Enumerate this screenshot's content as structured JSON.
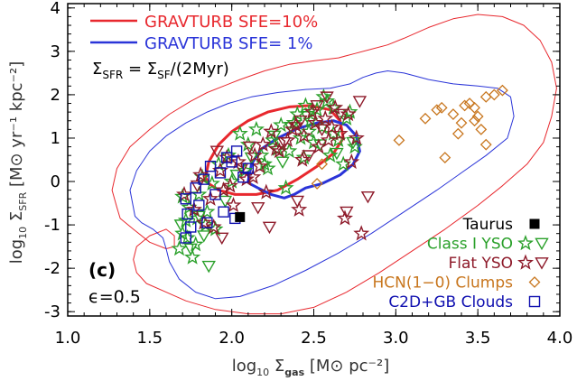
{
  "chart_data": {
    "type": "scatter",
    "panel_label": "(c)",
    "epsilon_label": "ϵ=0.5",
    "formula": {
      "left": "Σ",
      "left_sub": "SFR",
      "mid": " = Σ",
      "mid_sub": "SF",
      "right": "/(2Myr)"
    },
    "xlabel": {
      "pre": "log",
      "pre_sub": "10",
      "sym": " Σ",
      "sym_sub": "gas",
      "post": " [M⊙ pc⁻²]"
    },
    "ylabel": {
      "pre": "log",
      "pre_sub": "10",
      "sym": " Σ",
      "sym_sub": "SFR",
      "post": " [M⊙ yr⁻¹ kpc⁻²]"
    },
    "xlim": [
      1.0,
      4.0
    ],
    "ylim": [
      -3.1,
      4.1
    ],
    "xticks": [
      "1.0",
      "1.5",
      "2.0",
      "2.5",
      "3.0",
      "3.5",
      "4.0"
    ],
    "xtick_values": [
      1.0,
      1.5,
      2.0,
      2.5,
      3.0,
      3.5,
      4.0
    ],
    "yticks": [
      "-3",
      "-2",
      "-1",
      "0",
      "1",
      "2",
      "3",
      "4"
    ],
    "ytick_values": [
      -3,
      -2,
      -1,
      0,
      1,
      2,
      3,
      4
    ],
    "colors": {
      "red": "#e8282e",
      "blue": "#2a34d8",
      "darkblue": "#1010b0",
      "green": "#2aa02a",
      "maroon": "#8e1a2a",
      "orange": "#c8761e",
      "black": "#000000"
    },
    "line_legend": [
      {
        "label": "GRAVTURB SFE=10%",
        "color": "#e8282e"
      },
      {
        "label": "GRAVTURB SFE=  1%",
        "color": "#2a34d8"
      }
    ],
    "marker_legend": [
      {
        "label": "Taurus",
        "color": "#000000",
        "marker": "filled-square"
      },
      {
        "label": "Class I YSO",
        "color": "#2aa02a",
        "marker": "star-triangle"
      },
      {
        "label": "Flat YSO",
        "color": "#8e1a2a",
        "marker": "star-triangle"
      },
      {
        "label": "HCN(1−0) Clumps",
        "color": "#c8761e",
        "marker": "diamond"
      },
      {
        "label": "C2D+GB Clouds",
        "color": "#1010b0",
        "marker": "square"
      }
    ],
    "series": [
      {
        "name": "Taurus",
        "marker": "filled-square",
        "color": "#000000",
        "x": [
          2.05
        ],
        "y": [
          -0.82
        ]
      },
      {
        "name": "C2D+GB Clouds",
        "marker": "square",
        "color": "#1010b0",
        "x": [
          1.72,
          1.72,
          1.73,
          1.78,
          1.8,
          1.83,
          1.87,
          1.9,
          1.93,
          1.97,
          2.0,
          2.03,
          2.07,
          2.1,
          2.02,
          1.75,
          1.85,
          1.95
        ],
        "y": [
          -1.3,
          -0.4,
          -0.75,
          -0.15,
          -0.55,
          0.05,
          0.35,
          -0.3,
          0.2,
          0.55,
          0.45,
          0.7,
          0.1,
          0.3,
          -0.85,
          -1.05,
          -0.95,
          -0.7
        ]
      },
      {
        "name": "HCN(1-0) Clumps",
        "marker": "diamond",
        "color": "#c8761e",
        "x": [
          2.52,
          3.18,
          3.25,
          3.28,
          3.35,
          3.38,
          3.4,
          3.45,
          3.48,
          3.5,
          3.52,
          3.55,
          3.6,
          3.65,
          3.55,
          3.48,
          3.42,
          3.3,
          2.55,
          3.02
        ],
        "y": [
          -0.05,
          1.45,
          1.65,
          1.7,
          1.55,
          1.1,
          1.35,
          1.8,
          1.7,
          1.5,
          1.2,
          1.95,
          2.0,
          2.1,
          0.85,
          1.4,
          1.75,
          0.55,
          0.4,
          0.95
        ]
      },
      {
        "name": "Class I YSO",
        "marker": "star",
        "color": "#2aa02a",
        "x": [
          1.68,
          1.7,
          1.72,
          1.74,
          1.78,
          1.8,
          1.82,
          1.85,
          1.88,
          1.92,
          1.95,
          1.98,
          2.05,
          2.1,
          2.15,
          2.2,
          2.25,
          2.3,
          2.35,
          2.4,
          2.42,
          2.45,
          2.48,
          2.5,
          2.52,
          2.55,
          2.58,
          2.6,
          2.62,
          2.65,
          2.7,
          2.72,
          2.75,
          1.76,
          1.84,
          2.0,
          2.22,
          2.33,
          2.44,
          2.56,
          1.7,
          1.79,
          1.9,
          2.08,
          2.28,
          2.38,
          2.47,
          2.62,
          2.68,
          1.73,
          2.18
        ],
        "y": [
          -1.55,
          -1.2,
          -0.9,
          -0.6,
          -1.45,
          -0.3,
          0.1,
          -0.7,
          -0.05,
          0.4,
          -0.2,
          0.6,
          1.1,
          0.85,
          1.2,
          0.4,
          0.95,
          1.3,
          0.7,
          1.55,
          1.0,
          1.75,
          1.4,
          0.9,
          1.65,
          1.25,
          1.85,
          0.6,
          1.1,
          0.95,
          1.45,
          1.6,
          0.8,
          -1.75,
          -1.0,
          0.0,
          0.3,
          -0.15,
          0.55,
          1.95,
          -0.35,
          -0.85,
          -1.1,
          0.25,
          0.75,
          1.35,
          1.15,
          1.7,
          0.4,
          -1.3,
          0.6
        ]
      },
      {
        "name": "Class I YSO triangles",
        "marker": "triangle-down",
        "color": "#2aa02a",
        "x": [
          1.69,
          1.75,
          1.8,
          1.86,
          1.96,
          2.12,
          2.26,
          2.36,
          2.46,
          2.54,
          2.64,
          2.74,
          1.83,
          2.03,
          2.31
        ],
        "y": [
          -1.0,
          -1.55,
          -0.8,
          -1.95,
          -0.45,
          0.55,
          1.05,
          1.25,
          1.5,
          0.85,
          0.65,
          0.9,
          -1.25,
          0.15,
          0.45
        ]
      },
      {
        "name": "Flat YSO",
        "marker": "star",
        "color": "#8e1a2a",
        "x": [
          1.71,
          1.77,
          1.81,
          1.87,
          1.93,
          1.99,
          2.04,
          2.09,
          2.14,
          2.19,
          2.24,
          2.29,
          2.34,
          2.39,
          2.44,
          2.49,
          2.53,
          2.57,
          2.61,
          2.66,
          2.71,
          2.76,
          1.89,
          2.01,
          2.17,
          2.27,
          2.37,
          2.43,
          2.51,
          2.59,
          2.69,
          2.79,
          1.83,
          1.97,
          2.13,
          2.21,
          2.41,
          2.63,
          2.73,
          1.95
        ],
        "y": [
          -0.3,
          -0.65,
          0.15,
          -0.4,
          0.25,
          -0.1,
          0.45,
          0.05,
          0.6,
          0.85,
          1.15,
          0.7,
          0.95,
          1.3,
          1.05,
          1.6,
          0.8,
          1.45,
          1.25,
          1.1,
          1.55,
          1.0,
          -1.05,
          -0.55,
          0.35,
          0.75,
          1.2,
          0.5,
          1.35,
          0.95,
          -0.85,
          -1.2,
          -0.95,
          0.55,
          0.1,
          -0.25,
          -0.65,
          1.7,
          0.45,
          -0.2
        ]
      },
      {
        "name": "Flat YSO triangles",
        "marker": "triangle-down",
        "color": "#8e1a2a",
        "x": [
          1.79,
          1.91,
          2.06,
          2.16,
          2.23,
          2.32,
          2.42,
          2.52,
          2.58,
          2.66,
          2.78,
          1.94,
          2.11,
          2.4,
          2.55,
          2.7,
          2.83,
          2.47
        ],
        "y": [
          -0.1,
          0.7,
          0.3,
          -0.6,
          -1.05,
          0.9,
          1.4,
          1.75,
          1.95,
          1.55,
          1.85,
          -1.3,
          0.8,
          -0.45,
          1.2,
          -0.7,
          -0.35,
          0.6
        ]
      }
    ],
    "contours": [
      {
        "name": "GRAVTURB SFE=10% outer",
        "color": "#e8282e",
        "width": 1,
        "x": [
          1.3,
          1.27,
          1.3,
          1.38,
          1.5,
          1.62,
          1.75,
          1.85,
          1.95,
          2.05,
          2.2,
          2.35,
          2.5,
          2.65,
          2.75,
          2.85,
          2.95,
          3.05,
          3.2,
          3.35,
          3.5,
          3.65,
          3.78,
          3.88,
          3.95,
          3.98,
          3.95,
          3.9,
          3.8,
          3.65,
          3.5,
          3.3,
          3.1,
          2.9,
          2.7,
          2.5,
          2.3,
          2.1,
          1.9,
          1.72,
          1.6,
          1.48,
          1.42,
          1.4,
          1.42,
          1.5,
          1.6,
          1.65,
          1.65,
          1.6,
          1.5,
          1.4,
          1.32,
          1.3
        ],
        "y": [
          -0.6,
          -0.2,
          0.3,
          0.8,
          1.2,
          1.55,
          1.85,
          2.05,
          2.2,
          2.35,
          2.55,
          2.7,
          2.78,
          2.85,
          2.95,
          3.05,
          3.15,
          3.3,
          3.55,
          3.75,
          3.85,
          3.8,
          3.6,
          3.25,
          2.75,
          2.15,
          1.5,
          0.9,
          0.4,
          -0.1,
          -0.55,
          -1.1,
          -1.6,
          -2.1,
          -2.55,
          -2.9,
          -3.05,
          -3.05,
          -2.95,
          -2.75,
          -2.55,
          -2.35,
          -2.1,
          -1.8,
          -1.5,
          -1.25,
          -1.1,
          -1.25,
          -1.5,
          -1.55,
          -1.4,
          -1.1,
          -0.85,
          -0.6
        ]
      },
      {
        "name": "GRAVTURB SFE=1% outer",
        "color": "#2a34d8",
        "width": 1,
        "x": [
          1.4,
          1.38,
          1.42,
          1.5,
          1.6,
          1.72,
          1.85,
          1.98,
          2.12,
          2.28,
          2.45,
          2.6,
          2.72,
          2.8,
          2.88,
          2.95,
          3.05,
          3.2,
          3.35,
          3.5,
          3.62,
          3.7,
          3.72,
          3.68,
          3.55,
          3.4,
          3.25,
          3.05,
          2.85,
          2.65,
          2.45,
          2.25,
          2.05,
          1.9,
          1.78,
          1.68,
          1.62,
          1.6,
          1.58,
          1.52,
          1.45,
          1.41,
          1.4
        ],
        "y": [
          -0.6,
          -0.2,
          0.25,
          0.7,
          1.05,
          1.35,
          1.6,
          1.8,
          1.95,
          2.05,
          2.12,
          2.15,
          2.25,
          2.4,
          2.5,
          2.55,
          2.5,
          2.35,
          2.25,
          2.2,
          2.15,
          1.95,
          1.5,
          1.0,
          0.6,
          0.2,
          -0.2,
          -0.7,
          -1.2,
          -1.65,
          -2.05,
          -2.4,
          -2.65,
          -2.7,
          -2.55,
          -2.25,
          -1.85,
          -1.55,
          -1.3,
          -1.1,
          -0.95,
          -0.8,
          -0.6
        ]
      },
      {
        "name": "GRAVTURB SFE=10% inner",
        "color": "#e8282e",
        "width": 3,
        "x": [
          1.84,
          1.86,
          1.92,
          2.0,
          2.1,
          2.22,
          2.35,
          2.48,
          2.6,
          2.66,
          2.68,
          2.62,
          2.52,
          2.4,
          2.28,
          2.15,
          2.02,
          1.92,
          1.86,
          1.84
        ],
        "y": [
          0.1,
          0.45,
          0.85,
          1.15,
          1.4,
          1.6,
          1.72,
          1.75,
          1.65,
          1.4,
          1.0,
          0.65,
          0.35,
          0.05,
          -0.2,
          -0.3,
          -0.3,
          -0.2,
          -0.05,
          0.1
        ]
      },
      {
        "name": "GRAVTURB SFE=1% inner",
        "color": "#2a34d8",
        "width": 3,
        "x": [
          2.1,
          2.12,
          2.18,
          2.28,
          2.4,
          2.52,
          2.62,
          2.7,
          2.76,
          2.78,
          2.74,
          2.66,
          2.55,
          2.45,
          2.38,
          2.32,
          2.24,
          2.16,
          2.11,
          2.1
        ],
        "y": [
          0.0,
          0.4,
          0.75,
          1.0,
          1.22,
          1.35,
          1.4,
          1.3,
          1.05,
          0.7,
          0.4,
          0.15,
          -0.05,
          -0.15,
          -0.3,
          -0.38,
          -0.3,
          -0.15,
          -0.05,
          0.0
        ]
      }
    ]
  }
}
